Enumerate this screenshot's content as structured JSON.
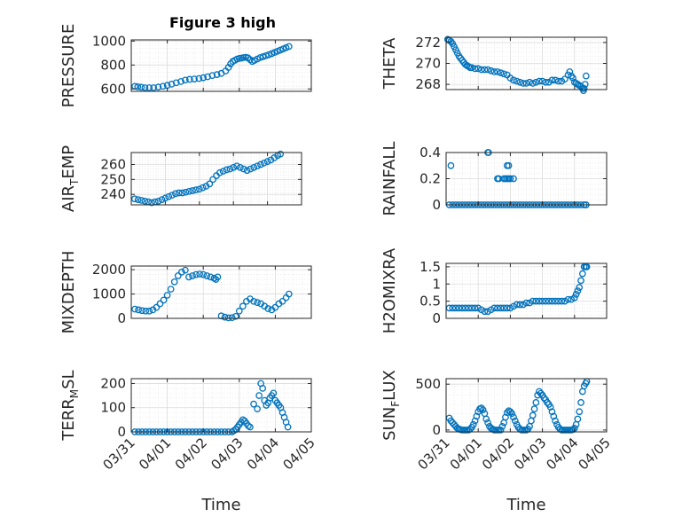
{
  "figure": {
    "title": "Figure 3 high"
  },
  "chart_data": [
    {
      "id": "pressure",
      "type": "scatter",
      "ylabel": "PRESSURE",
      "ylim": [
        580,
        1010
      ],
      "yticks": [
        600,
        800,
        1000
      ],
      "xlim": [
        0,
        5
      ],
      "xticks": [
        0,
        1,
        2,
        3,
        4,
        5
      ],
      "xticklabels": [
        "03/31",
        "04/01",
        "04/02",
        "04/03",
        "04/04",
        "04/05"
      ],
      "show_xticklabels": false,
      "grid": true,
      "minor_grid": true,
      "x": [
        0.1,
        0.18,
        0.28,
        0.38,
        0.5,
        0.62,
        0.75,
        0.88,
        1.0,
        1.12,
        1.25,
        1.38,
        1.5,
        1.62,
        1.75,
        1.88,
        2.0,
        2.12,
        2.25,
        2.38,
        2.5,
        2.62,
        2.7,
        2.76,
        2.82,
        2.88,
        2.94,
        3.0,
        3.06,
        3.12,
        3.18,
        3.24,
        3.3,
        3.36,
        3.42,
        3.5,
        3.58,
        3.66,
        3.74,
        3.82,
        3.9,
        3.98,
        4.06,
        4.14,
        4.22,
        4.3,
        4.38
      ],
      "y": [
        622,
        618,
        614,
        610,
        610,
        610,
        615,
        622,
        630,
        640,
        652,
        662,
        674,
        680,
        683,
        687,
        694,
        702,
        712,
        720,
        730,
        750,
        780,
        810,
        830,
        840,
        850,
        855,
        858,
        862,
        865,
        860,
        845,
        830,
        838,
        850,
        862,
        870,
        878,
        886,
        895,
        905,
        915,
        925,
        935,
        945,
        955
      ]
    },
    {
      "id": "theta",
      "type": "scatter",
      "ylabel": "THETA",
      "ylim": [
        267.5,
        272.5
      ],
      "yticks": [
        268,
        270,
        272
      ],
      "xlim": [
        0,
        5
      ],
      "xticks": [
        0,
        1,
        2,
        3,
        4,
        5
      ],
      "xticklabels": [
        "03/31",
        "04/01",
        "04/02",
        "04/03",
        "04/04",
        "04/05"
      ],
      "show_xticklabels": false,
      "grid": true,
      "minor_grid": true,
      "x": [
        0.05,
        0.1,
        0.15,
        0.2,
        0.25,
        0.3,
        0.35,
        0.4,
        0.45,
        0.5,
        0.55,
        0.6,
        0.65,
        0.7,
        0.75,
        0.8,
        0.9,
        1.0,
        1.1,
        1.2,
        1.3,
        1.4,
        1.5,
        1.6,
        1.7,
        1.8,
        1.9,
        2.0,
        2.1,
        2.2,
        2.3,
        2.4,
        2.5,
        2.6,
        2.7,
        2.8,
        2.9,
        3.0,
        3.1,
        3.2,
        3.3,
        3.4,
        3.5,
        3.6,
        3.7,
        3.8,
        3.85,
        3.9,
        3.95,
        4.0,
        4.05,
        4.1,
        4.15,
        4.2,
        4.25,
        4.28,
        4.3,
        4.33,
        4.36
      ],
      "y": [
        272.3,
        272.2,
        272.1,
        271.9,
        271.6,
        271.3,
        271.0,
        270.7,
        270.5,
        270.3,
        270.1,
        269.9,
        269.8,
        269.7,
        269.6,
        269.6,
        269.5,
        269.5,
        269.4,
        269.4,
        269.4,
        269.3,
        269.2,
        269.2,
        269.1,
        269.0,
        268.9,
        268.6,
        268.4,
        268.3,
        268.2,
        268.1,
        268.1,
        268.2,
        268.1,
        268.2,
        268.3,
        268.3,
        268.2,
        268.2,
        268.4,
        268.4,
        268.3,
        268.3,
        268.5,
        268.9,
        269.2,
        268.8,
        268.6,
        268.2,
        268.1,
        268.0,
        267.9,
        267.8,
        267.6,
        267.4,
        267.6,
        268.0,
        268.8
      ]
    },
    {
      "id": "air_temp",
      "type": "scatter",
      "ylabel_main": "AIR",
      "ylabel_sub": "T",
      "ylabel_tail": "EMP",
      "ylim": [
        233,
        268
      ],
      "yticks": [
        240,
        250,
        260
      ],
      "xlim": [
        0,
        5
      ],
      "xticks": [
        0,
        1,
        2,
        3,
        4,
        5
      ],
      "xticklabels": [
        "03/31",
        "04/01",
        "04/02",
        "04/03",
        "04/04",
        "04/05"
      ],
      "show_xticklabels": false,
      "grid": true,
      "minor_grid": true,
      "x": [
        0.1,
        0.2,
        0.3,
        0.4,
        0.5,
        0.6,
        0.7,
        0.8,
        0.9,
        1.0,
        1.1,
        1.2,
        1.3,
        1.4,
        1.5,
        1.6,
        1.7,
        1.8,
        1.9,
        2.0,
        2.1,
        2.2,
        2.3,
        2.4,
        2.5,
        2.6,
        2.7,
        2.8,
        2.9,
        3.0,
        3.1,
        3.2,
        3.3,
        3.4,
        3.5,
        3.6,
        3.7,
        3.8,
        3.9,
        4.0,
        4.1,
        4.2,
        4.3,
        4.38
      ],
      "y": [
        237,
        236.5,
        236,
        235.5,
        235,
        234.5,
        235,
        235.5,
        236.5,
        237.5,
        238.5,
        239.5,
        240.5,
        241,
        241,
        241.5,
        242,
        242.5,
        243,
        243.5,
        244.5,
        245.5,
        247,
        250,
        252.5,
        254.5,
        255.5,
        256.5,
        257,
        258,
        259,
        258,
        257,
        256,
        257,
        258,
        259,
        260,
        261,
        262,
        263,
        264.5,
        266,
        267
      ]
    },
    {
      "id": "rainfall",
      "type": "scatter",
      "ylabel": "RAINFALL",
      "ylim": [
        0,
        0.4
      ],
      "yticks": [
        0,
        0.2,
        0.4
      ],
      "ytick_labels": [
        "0",
        "0.2",
        "0.4"
      ],
      "xlim": [
        0,
        5
      ],
      "xticks": [
        0,
        1,
        2,
        3,
        4,
        5
      ],
      "xticklabels": [
        "03/31",
        "04/01",
        "04/02",
        "04/03",
        "04/04",
        "04/05"
      ],
      "show_xticklabels": false,
      "grid": true,
      "minor_grid": true,
      "x": [
        0.1,
        0.2,
        0.3,
        0.4,
        0.5,
        0.6,
        0.7,
        0.8,
        0.9,
        1.0,
        1.1,
        1.2,
        1.3,
        1.4,
        1.5,
        1.6,
        1.7,
        1.8,
        1.9,
        2.0,
        2.1,
        2.2,
        2.3,
        2.4,
        2.5,
        2.6,
        2.7,
        2.8,
        2.9,
        3.0,
        3.1,
        3.2,
        3.3,
        3.4,
        3.5,
        3.6,
        3.7,
        3.8,
        3.9,
        4.0,
        4.1,
        4.2,
        4.3,
        4.36,
        0.15,
        1.3,
        1.32,
        1.6,
        1.64,
        1.8,
        1.85,
        1.9,
        1.95,
        1.9,
        1.95,
        2.0,
        2.1
      ],
      "y": [
        0,
        0,
        0,
        0,
        0,
        0,
        0,
        0,
        0,
        0,
        0,
        0,
        0,
        0,
        0,
        0,
        0,
        0,
        0,
        0,
        0,
        0,
        0,
        0,
        0,
        0,
        0,
        0,
        0,
        0,
        0,
        0,
        0,
        0,
        0,
        0,
        0,
        0,
        0,
        0,
        0,
        0,
        0,
        0,
        0.3,
        0.4,
        0.4,
        0.2,
        0.2,
        0.2,
        0.2,
        0.3,
        0.3,
        0.2,
        0.2,
        0.2,
        0.2
      ]
    },
    {
      "id": "mixdepth",
      "type": "scatter",
      "ylabel": "MIXDEPTH",
      "ylim": [
        0,
        2150
      ],
      "yticks": [
        0,
        1000,
        2000
      ],
      "xlim": [
        0,
        5
      ],
      "xticks": [
        0,
        1,
        2,
        3,
        4,
        5
      ],
      "xticklabels": [
        "03/31",
        "04/01",
        "04/02",
        "04/03",
        "04/04",
        "04/05"
      ],
      "show_xticklabels": false,
      "grid": true,
      "minor_grid": true,
      "x": [
        0.1,
        0.2,
        0.3,
        0.4,
        0.5,
        0.6,
        0.7,
        0.8,
        0.9,
        1.0,
        1.1,
        1.2,
        1.3,
        1.4,
        1.5,
        1.6,
        1.7,
        1.8,
        1.9,
        2.0,
        2.1,
        2.2,
        2.3,
        2.35,
        2.4,
        2.5,
        2.6,
        2.7,
        2.8,
        2.9,
        3.0,
        3.1,
        3.2,
        3.3,
        3.4,
        3.5,
        3.6,
        3.7,
        3.8,
        3.9,
        4.0,
        4.1,
        4.2,
        4.3,
        4.38
      ],
      "y": [
        380,
        350,
        320,
        300,
        300,
        350,
        450,
        600,
        750,
        950,
        1200,
        1500,
        1750,
        1900,
        1980,
        1700,
        1750,
        1800,
        1820,
        1800,
        1750,
        1700,
        1650,
        1600,
        1700,
        100,
        50,
        20,
        30,
        80,
        300,
        500,
        700,
        800,
        700,
        650,
        600,
        500,
        400,
        350,
        450,
        600,
        700,
        850,
        1000
      ]
    },
    {
      "id": "h2omixra",
      "type": "scatter",
      "ylabel": "H2OMIXRA",
      "ylim": [
        0,
        1.6
      ],
      "yticks": [
        0,
        0.5,
        1,
        1.5
      ],
      "ytick_labels": [
        "0",
        "0.5",
        "1",
        "1.5"
      ],
      "xlim": [
        0,
        5
      ],
      "xticks": [
        0,
        1,
        2,
        3,
        4,
        5
      ],
      "xticklabels": [
        "03/31",
        "04/01",
        "04/02",
        "04/03",
        "04/04",
        "04/05"
      ],
      "show_xticklabels": false,
      "grid": true,
      "minor_grid": true,
      "x": [
        0.1,
        0.2,
        0.3,
        0.4,
        0.5,
        0.6,
        0.7,
        0.8,
        0.9,
        1.0,
        1.1,
        1.2,
        1.3,
        1.4,
        1.5,
        1.6,
        1.7,
        1.8,
        1.9,
        2.0,
        2.1,
        2.2,
        2.3,
        2.4,
        2.5,
        2.6,
        2.7,
        2.8,
        2.9,
        3.0,
        3.1,
        3.2,
        3.3,
        3.4,
        3.5,
        3.6,
        3.7,
        3.8,
        3.9,
        4.0,
        4.05,
        4.1,
        4.15,
        4.2,
        4.25,
        4.3,
        4.35,
        4.38
      ],
      "y": [
        0.3,
        0.3,
        0.3,
        0.3,
        0.3,
        0.3,
        0.3,
        0.3,
        0.3,
        0.3,
        0.25,
        0.2,
        0.2,
        0.25,
        0.3,
        0.3,
        0.3,
        0.3,
        0.3,
        0.3,
        0.35,
        0.4,
        0.4,
        0.4,
        0.45,
        0.45,
        0.5,
        0.5,
        0.5,
        0.5,
        0.5,
        0.5,
        0.5,
        0.5,
        0.5,
        0.5,
        0.5,
        0.55,
        0.55,
        0.6,
        0.7,
        0.8,
        0.9,
        1.1,
        1.3,
        1.5,
        1.5,
        1.5
      ]
    },
    {
      "id": "terr_msl",
      "type": "scatter",
      "ylabel_main": "TERR",
      "ylabel_sub": "M",
      "ylabel_tail": "SL",
      "ylim": [
        0,
        220
      ],
      "yticks": [
        0,
        100,
        200
      ],
      "xlim": [
        0,
        5
      ],
      "xticks": [
        0,
        1,
        2,
        3,
        4,
        5
      ],
      "xticklabels": [
        "03/31",
        "04/01",
        "04/02",
        "04/03",
        "04/04",
        "04/05"
      ],
      "show_xticklabels": true,
      "xlabel": "Time",
      "grid": true,
      "minor_grid": true,
      "x": [
        0.1,
        0.2,
        0.3,
        0.4,
        0.5,
        0.6,
        0.7,
        0.8,
        0.9,
        1.0,
        1.1,
        1.2,
        1.3,
        1.4,
        1.5,
        1.6,
        1.7,
        1.8,
        1.9,
        2.0,
        2.1,
        2.2,
        2.3,
        2.4,
        2.5,
        2.6,
        2.7,
        2.8,
        2.85,
        2.9,
        2.95,
        3.0,
        3.05,
        3.1,
        3.15,
        3.2,
        3.25,
        3.3,
        3.4,
        3.5,
        3.55,
        3.6,
        3.65,
        3.7,
        3.75,
        3.8,
        3.85,
        3.9,
        3.95,
        4.0,
        4.05,
        4.1,
        4.15,
        4.2,
        4.25,
        4.3,
        4.35
      ],
      "y": [
        0,
        0,
        0,
        0,
        0,
        0,
        0,
        0,
        0,
        0,
        0,
        0,
        0,
        0,
        0,
        0,
        0,
        0,
        0,
        0,
        0,
        0,
        0,
        0,
        0,
        0,
        0,
        0,
        5,
        10,
        20,
        30,
        40,
        50,
        45,
        35,
        25,
        20,
        115,
        95,
        150,
        200,
        180,
        130,
        110,
        120,
        140,
        150,
        160,
        130,
        120,
        110,
        100,
        80,
        60,
        40,
        20
      ]
    },
    {
      "id": "sun_flux",
      "type": "scatter",
      "ylabel_main": "SUN",
      "ylabel_sub": "F",
      "ylabel_tail": "LUX",
      "ylim": [
        -20,
        560
      ],
      "yticks": [
        0,
        500
      ],
      "xlim": [
        0,
        5
      ],
      "xticks": [
        0,
        1,
        2,
        3,
        4,
        5
      ],
      "xticklabels": [
        "03/31",
        "04/01",
        "04/02",
        "04/03",
        "04/04",
        "04/05"
      ],
      "show_xticklabels": true,
      "xlabel": "Time",
      "grid": true,
      "minor_grid": true,
      "x": [
        0.1,
        0.15,
        0.2,
        0.25,
        0.3,
        0.35,
        0.4,
        0.45,
        0.5,
        0.55,
        0.6,
        0.65,
        0.7,
        0.75,
        0.8,
        0.85,
        0.9,
        0.95,
        1.0,
        1.05,
        1.1,
        1.15,
        1.2,
        1.25,
        1.3,
        1.35,
        1.4,
        1.45,
        1.5,
        1.55,
        1.6,
        1.65,
        1.7,
        1.75,
        1.8,
        1.85,
        1.9,
        1.95,
        2.0,
        2.05,
        2.1,
        2.15,
        2.2,
        2.25,
        2.3,
        2.35,
        2.4,
        2.45,
        2.5,
        2.55,
        2.6,
        2.65,
        2.7,
        2.75,
        2.8,
        2.85,
        2.9,
        2.95,
        3.0,
        3.05,
        3.1,
        3.15,
        3.2,
        3.25,
        3.3,
        3.35,
        3.4,
        3.45,
        3.5,
        3.55,
        3.6,
        3.65,
        3.7,
        3.75,
        3.8,
        3.85,
        3.9,
        3.95,
        4.0,
        4.05,
        4.1,
        4.15,
        4.2,
        4.25,
        4.3,
        4.35,
        4.38
      ],
      "y": [
        130,
        100,
        80,
        60,
        40,
        20,
        10,
        5,
        0,
        0,
        0,
        0,
        0,
        10,
        30,
        60,
        100,
        150,
        200,
        230,
        240,
        220,
        180,
        120,
        80,
        40,
        20,
        10,
        0,
        0,
        0,
        0,
        0,
        40,
        80,
        140,
        190,
        210,
        200,
        180,
        140,
        100,
        60,
        30,
        10,
        0,
        0,
        0,
        0,
        10,
        40,
        100,
        160,
        230,
        300,
        380,
        420,
        400,
        380,
        350,
        330,
        300,
        280,
        250,
        200,
        150,
        100,
        60,
        30,
        10,
        0,
        0,
        0,
        0,
        0,
        0,
        0,
        5,
        20,
        60,
        120,
        200,
        300,
        420,
        480,
        510,
        530
      ]
    }
  ]
}
